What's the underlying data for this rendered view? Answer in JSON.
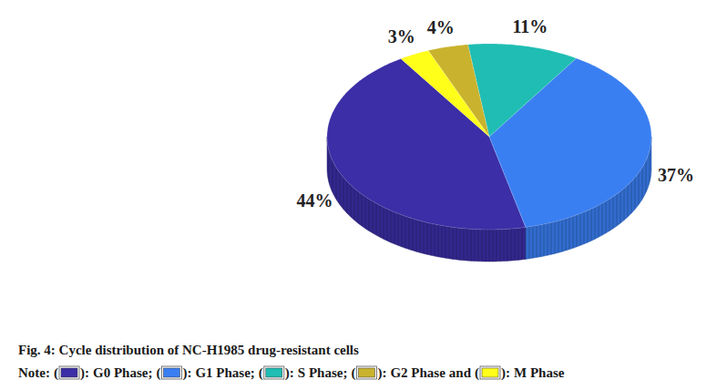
{
  "chart_data": {
    "type": "pie",
    "title": "Fig. 4: Cycle distribution of NC-H1985 drug-resistant cells",
    "categories": [
      "G0 Phase",
      "G1 Phase",
      "S Phase",
      "G2 Phase",
      "M Phase"
    ],
    "values": [
      44,
      37,
      11,
      4,
      3
    ],
    "value_labels": [
      "44%",
      "37%",
      "11%",
      "4%",
      "3%"
    ],
    "colors": [
      "#3b2ea6",
      "#3a7ff2",
      "#1fbdb3",
      "#c9b32e",
      "#ffff1a"
    ],
    "data_labels": true,
    "note": {
      "label": "Note:",
      "open": "(",
      "close": "):",
      "separators": [
        ";",
        ";",
        ";",
        "and"
      ]
    }
  }
}
